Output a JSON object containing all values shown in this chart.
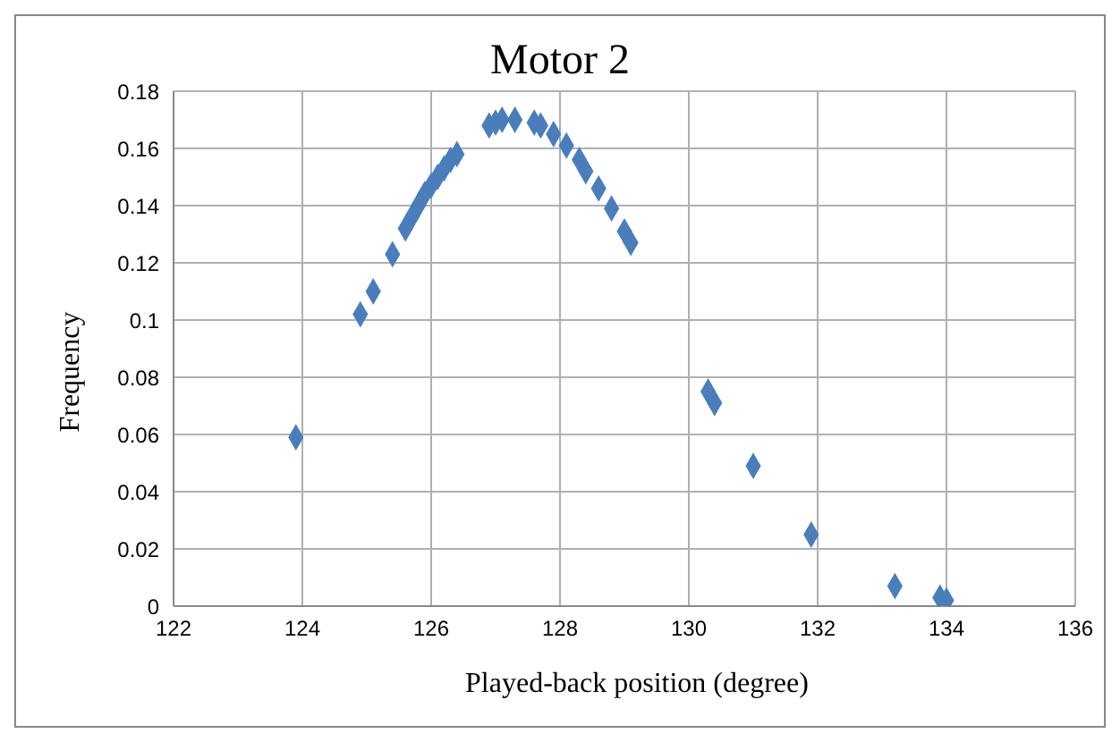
{
  "chart_data": {
    "type": "scatter",
    "title": "Motor 2",
    "xlabel": "Played-back position (degree)",
    "ylabel": "Frequency",
    "xlim": [
      122,
      136
    ],
    "xticks": [
      122,
      124,
      126,
      128,
      130,
      132,
      134,
      136
    ],
    "ylim": [
      0,
      0.18
    ],
    "yticks": [
      0,
      0.02,
      0.04,
      0.06,
      0.08,
      0.1,
      0.12,
      0.14,
      0.16,
      0.18
    ],
    "grid": true,
    "legend": false,
    "marker": "diamond",
    "series": [
      {
        "color": "#4a7ebb",
        "x": [
          123.9,
          124.9,
          125.1,
          125.4,
          125.6,
          125.7,
          125.8,
          125.9,
          126.0,
          126.1,
          126.2,
          126.3,
          126.4,
          126.9,
          127.0,
          127.1,
          127.3,
          127.6,
          127.7,
          127.9,
          128.1,
          128.3,
          128.4,
          128.6,
          128.8,
          129.0,
          129.1,
          130.3,
          130.4,
          131.0,
          131.9,
          133.2,
          133.9,
          134.0
        ],
        "values": [
          0.059,
          0.102,
          0.11,
          0.123,
          0.132,
          0.136,
          0.14,
          0.144,
          0.147,
          0.15,
          0.153,
          0.156,
          0.158,
          0.168,
          0.169,
          0.17,
          0.17,
          0.169,
          0.168,
          0.165,
          0.161,
          0.156,
          0.152,
          0.146,
          0.139,
          0.131,
          0.127,
          0.075,
          0.071,
          0.049,
          0.025,
          0.007,
          0.003,
          0.002
        ]
      }
    ]
  }
}
